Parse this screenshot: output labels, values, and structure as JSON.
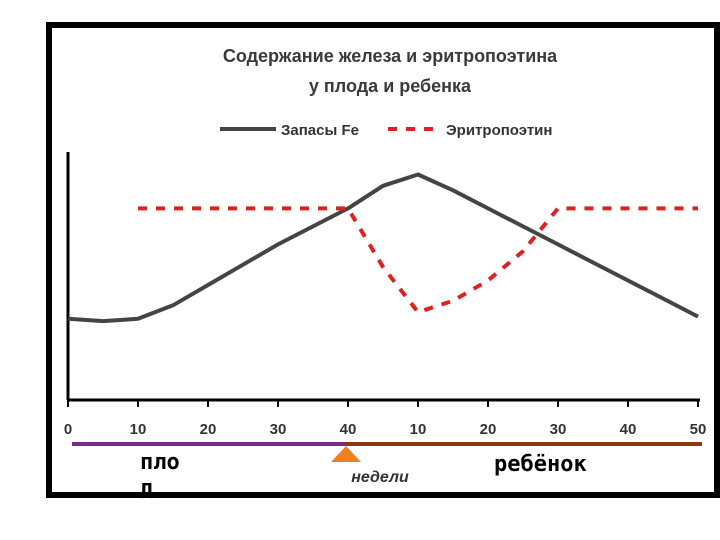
{
  "chart_data": {
    "type": "line",
    "title_lines": [
      "Содержание железа и эритропоэтина",
      "у плода и ребенка"
    ],
    "xlabel": "недели",
    "x_tick_labels": [
      "0",
      "10",
      "20",
      "30",
      "40",
      "10",
      "20",
      "30",
      "40",
      "50"
    ],
    "ylabel": "",
    "y_ticks_shown": false,
    "grid": false,
    "legend_position": "top",
    "series": [
      {
        "name": "Запасы Fe",
        "style": "solid",
        "color": "#444444",
        "x": [
          0,
          5,
          10,
          15,
          20,
          25,
          30,
          35,
          40,
          45,
          50,
          55,
          60,
          65,
          70,
          75,
          80,
          85,
          90
        ],
        "y": [
          3.6,
          3.5,
          3.6,
          4.2,
          5.1,
          6.0,
          6.9,
          7.7,
          8.5,
          9.5,
          10.0,
          9.3,
          8.5,
          7.7,
          6.9,
          6.1,
          5.3,
          4.5,
          3.7
        ]
      },
      {
        "name": "Эритропоэтин",
        "style": "dashed",
        "color": "#e02020",
        "x": [
          10,
          20,
          30,
          40,
          45,
          50,
          55,
          60,
          65,
          70,
          80,
          90
        ],
        "y": [
          8.5,
          8.5,
          8.5,
          8.5,
          5.9,
          3.9,
          4.4,
          5.3,
          6.6,
          8.5,
          8.5,
          8.5
        ]
      }
    ],
    "phases": [
      {
        "label": "пло\nд",
        "color": "#7b2a8c"
      },
      {
        "label": "ребёнок",
        "color": "#8b3a10"
      }
    ],
    "birth_marker_color": "#f08020"
  }
}
